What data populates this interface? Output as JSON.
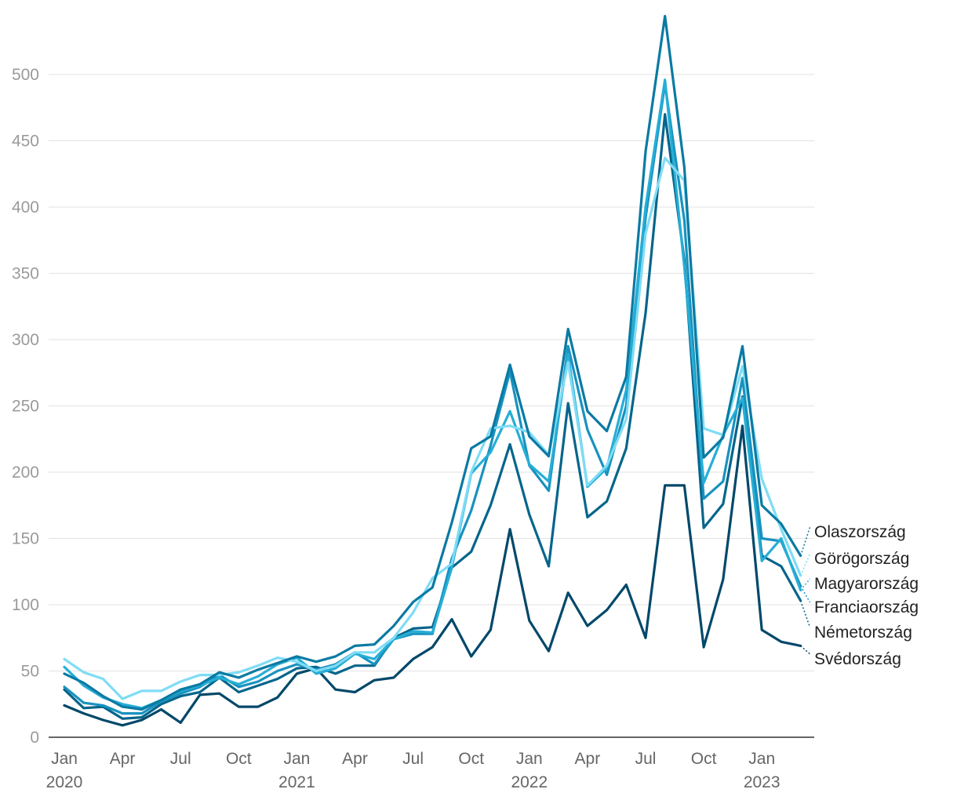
{
  "chart_data": {
    "type": "line",
    "title": "",
    "xlabel": "",
    "ylabel": "",
    "ylim": [
      0,
      540
    ],
    "y_ticks": [
      "0",
      "50",
      "100",
      "150",
      "200",
      "250",
      "300",
      "350",
      "400",
      "450",
      "500"
    ],
    "x_tick_labels": [
      {
        "index": 0,
        "month": "Jan",
        "year": "2020"
      },
      {
        "index": 3,
        "month": "Apr",
        "year": ""
      },
      {
        "index": 6,
        "month": "Jul",
        "year": ""
      },
      {
        "index": 9,
        "month": "Oct",
        "year": ""
      },
      {
        "index": 12,
        "month": "Jan",
        "year": "2021"
      },
      {
        "index": 15,
        "month": "Apr",
        "year": ""
      },
      {
        "index": 18,
        "month": "Jul",
        "year": ""
      },
      {
        "index": 21,
        "month": "Oct",
        "year": ""
      },
      {
        "index": 24,
        "month": "Jan",
        "year": "2022"
      },
      {
        "index": 27,
        "month": "Apr",
        "year": ""
      },
      {
        "index": 30,
        "month": "Jul",
        "year": ""
      },
      {
        "index": 33,
        "month": "Oct",
        "year": ""
      },
      {
        "index": 36,
        "month": "Jan",
        "year": "2023"
      }
    ],
    "series": [
      {
        "name": "Olaszország",
        "color": "#0a7aa3",
        "values": [
          48,
          41,
          31,
          23,
          21,
          28,
          36,
          40,
          49,
          45,
          51,
          56,
          61,
          57,
          61,
          69,
          70,
          84,
          102,
          113,
          162,
          218,
          227,
          281,
          227,
          212,
          308,
          246,
          231,
          272,
          442,
          544,
          430,
          211,
          226,
          295,
          175,
          161,
          137
        ]
      },
      {
        "name": "Görögország",
        "color": "#7fdcf5",
        "values": [
          59,
          49,
          44,
          29,
          35,
          35,
          42,
          47,
          47,
          49,
          54,
          60,
          57,
          50,
          54,
          64,
          64,
          75,
          94,
          120,
          131,
          200,
          233,
          235,
          230,
          213,
          283,
          190,
          205,
          240,
          380,
          437,
          420,
          233,
          228,
          280,
          195,
          157,
          122
        ]
      },
      {
        "name": "Magyarország",
        "color": "#26aed6",
        "values": [
          53,
          39,
          30,
          25,
          22,
          28,
          35,
          39,
          45,
          40,
          46,
          55,
          60,
          48,
          52,
          63,
          59,
          74,
          80,
          79,
          128,
          199,
          215,
          246,
          206,
          193,
          289,
          189,
          203,
          262,
          400,
          496,
          355,
          192,
          228,
          256,
          133,
          150,
          111
        ]
      },
      {
        "name": "Franciaország",
        "color": "#1892bf",
        "values": [
          38,
          26,
          24,
          18,
          18,
          27,
          33,
          38,
          47,
          38,
          42,
          50,
          55,
          51,
          55,
          64,
          55,
          74,
          78,
          78,
          135,
          171,
          220,
          276,
          205,
          186,
          295,
          232,
          198,
          250,
          392,
          493,
          390,
          180,
          193,
          271,
          150,
          148,
          114
        ]
      },
      {
        "name": "Németország",
        "color": "#05658b",
        "values": [
          36,
          22,
          23,
          14,
          15,
          25,
          31,
          34,
          45,
          34,
          39,
          44,
          52,
          53,
          48,
          54,
          54,
          75,
          82,
          83,
          128,
          140,
          175,
          221,
          168,
          129,
          252,
          166,
          178,
          218,
          320,
          470,
          360,
          158,
          176,
          257,
          137,
          129,
          103
        ]
      },
      {
        "name": "Svédország",
        "color": "#02486a",
        "values": [
          24,
          18,
          13,
          9,
          13,
          21,
          11,
          32,
          33,
          23,
          23,
          30,
          48,
          52,
          36,
          34,
          43,
          45,
          59,
          68,
          89,
          61,
          81,
          157,
          88,
          65,
          109,
          84,
          96,
          115,
          75,
          190,
          190,
          68,
          119,
          235,
          81,
          72,
          69
        ]
      }
    ],
    "legend_order": [
      "Olaszország",
      "Görögország",
      "Magyarország",
      "Franciaország",
      "Németország",
      "Svédország"
    ],
    "legend_placement": "right"
  }
}
